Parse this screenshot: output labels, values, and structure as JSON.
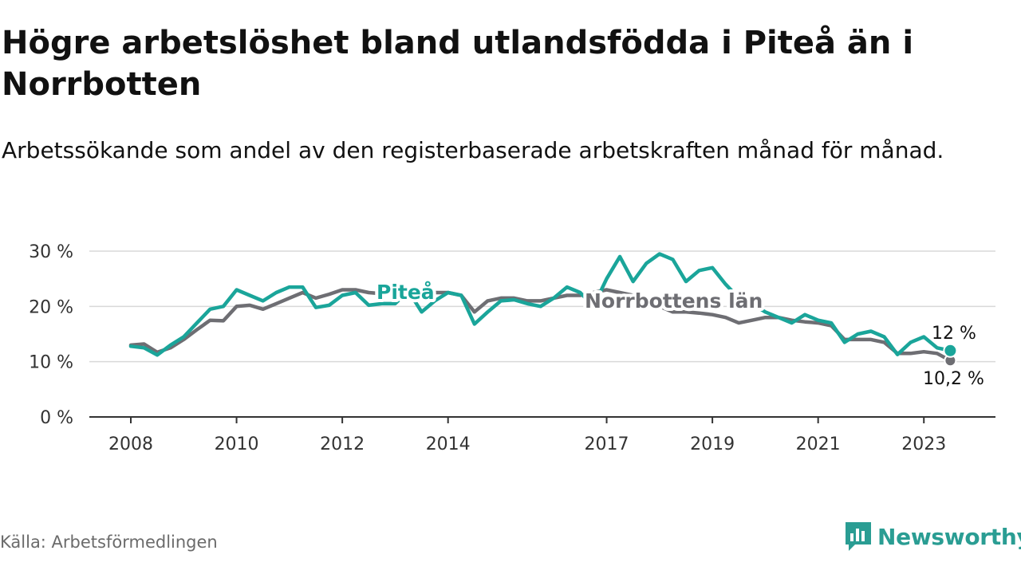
{
  "header": {
    "title": "Högre arbetslöshet bland utlandsfödda i Piteå än i Norrbotten",
    "subtitle": "Arbetssökande som andel av den registerbaserade arbetskraften månad för månad."
  },
  "footer": {
    "source": "Källa: Arbetsförmedlingen",
    "brand": "Newsworthy"
  },
  "colors": {
    "pitea": "#1aa59a",
    "norrbotten": "#6e6e73",
    "grid": "#d9d9d9",
    "axis": "#333333",
    "brand": "#2a9d93"
  },
  "chart_data": {
    "type": "line",
    "title": "Högre arbetslöshet bland utlandsfödda i Piteå än i Norrbotten",
    "subtitle": "Arbetssökande som andel av den registerbaserade arbetskraften månad för månad.",
    "xlabel": "",
    "ylabel": "",
    "xlim": [
      2008,
      2023.6
    ],
    "ylim": [
      0,
      30
    ],
    "grid": true,
    "y_ticks": [
      0,
      10,
      20,
      30
    ],
    "y_tick_labels": [
      "0 %",
      "10 %",
      "20 %",
      "30 %"
    ],
    "x_ticks": [
      2008,
      2010,
      2012,
      2014,
      2017,
      2019,
      2021,
      2023
    ],
    "x_tick_labels": [
      "2008",
      "2010",
      "2012",
      "2014",
      "2017",
      "2019",
      "2021",
      "2023"
    ],
    "series": [
      {
        "name": "Norrbottens län",
        "label": "Norrbottens län",
        "end_label": "10,2 %",
        "points": [
          [
            2008,
            13
          ],
          [
            2008.25,
            13.2
          ],
          [
            2008.5,
            11.7
          ],
          [
            2008.75,
            12.5
          ],
          [
            2009,
            14
          ],
          [
            2009.25,
            15.8
          ],
          [
            2009.5,
            17.5
          ],
          [
            2009.75,
            17.4
          ],
          [
            2010,
            20
          ],
          [
            2010.25,
            20.2
          ],
          [
            2010.5,
            19.5
          ],
          [
            2010.75,
            20.5
          ],
          [
            2011,
            21.5
          ],
          [
            2011.25,
            22.5
          ],
          [
            2011.5,
            21.5
          ],
          [
            2011.75,
            22.2
          ],
          [
            2012,
            23
          ],
          [
            2012.25,
            23
          ],
          [
            2012.5,
            22.5
          ],
          [
            2012.75,
            22.3
          ],
          [
            2013,
            22.5
          ],
          [
            2013.25,
            22.5
          ],
          [
            2013.5,
            22.2
          ],
          [
            2013.75,
            22.5
          ],
          [
            2014,
            22.5
          ],
          [
            2014.25,
            22
          ],
          [
            2014.5,
            19
          ],
          [
            2014.75,
            21
          ],
          [
            2015,
            21.5
          ],
          [
            2015.25,
            21.5
          ],
          [
            2015.5,
            21
          ],
          [
            2015.75,
            21
          ],
          [
            2016,
            21.5
          ],
          [
            2016.25,
            22
          ],
          [
            2016.5,
            22
          ],
          [
            2016.75,
            22.5
          ],
          [
            2017,
            23
          ],
          [
            2017.25,
            22.5
          ],
          [
            2017.5,
            22
          ],
          [
            2017.75,
            21
          ],
          [
            2018,
            20
          ],
          [
            2018.25,
            19
          ],
          [
            2018.5,
            19
          ],
          [
            2018.75,
            18.8
          ],
          [
            2019,
            18.5
          ],
          [
            2019.25,
            18
          ],
          [
            2019.5,
            17
          ],
          [
            2019.75,
            17.5
          ],
          [
            2020,
            18
          ],
          [
            2020.25,
            18
          ],
          [
            2020.5,
            17.5
          ],
          [
            2020.75,
            17.2
          ],
          [
            2021,
            17
          ],
          [
            2021.25,
            16.5
          ],
          [
            2021.5,
            14
          ],
          [
            2021.75,
            14
          ],
          [
            2022,
            14
          ],
          [
            2022.25,
            13.5
          ],
          [
            2022.5,
            11.5
          ],
          [
            2022.75,
            11.5
          ],
          [
            2023,
            11.8
          ],
          [
            2023.25,
            11.5
          ],
          [
            2023.5,
            10.2
          ]
        ]
      },
      {
        "name": "Piteå",
        "label": "Piteå",
        "end_label": "12 %",
        "points": [
          [
            2008,
            12.8
          ],
          [
            2008.25,
            12.5
          ],
          [
            2008.5,
            11.2
          ],
          [
            2008.75,
            13
          ],
          [
            2009,
            14.5
          ],
          [
            2009.25,
            17
          ],
          [
            2009.5,
            19.5
          ],
          [
            2009.75,
            20
          ],
          [
            2010,
            23
          ],
          [
            2010.25,
            22
          ],
          [
            2010.5,
            21
          ],
          [
            2010.75,
            22.5
          ],
          [
            2011,
            23.5
          ],
          [
            2011.25,
            23.5
          ],
          [
            2011.5,
            19.8
          ],
          [
            2011.75,
            20.2
          ],
          [
            2012,
            22
          ],
          [
            2012.25,
            22.5
          ],
          [
            2012.5,
            20.2
          ],
          [
            2012.75,
            20.5
          ],
          [
            2013,
            20.5
          ],
          [
            2013.25,
            22.8
          ],
          [
            2013.5,
            19
          ],
          [
            2013.75,
            21
          ],
          [
            2014,
            22.5
          ],
          [
            2014.25,
            22
          ],
          [
            2014.5,
            16.8
          ],
          [
            2014.75,
            19
          ],
          [
            2015,
            21
          ],
          [
            2015.25,
            21.2
          ],
          [
            2015.5,
            20.5
          ],
          [
            2015.75,
            20
          ],
          [
            2016,
            21.5
          ],
          [
            2016.25,
            23.5
          ],
          [
            2016.5,
            22.5
          ],
          [
            2016.75,
            20
          ],
          [
            2017,
            25
          ],
          [
            2017.25,
            29
          ],
          [
            2017.5,
            24.5
          ],
          [
            2017.75,
            27.8
          ],
          [
            2018,
            29.5
          ],
          [
            2018.25,
            28.5
          ],
          [
            2018.5,
            24.5
          ],
          [
            2018.75,
            26.5
          ],
          [
            2019,
            27
          ],
          [
            2019.25,
            24
          ],
          [
            2019.5,
            21.5
          ],
          [
            2019.75,
            20.5
          ],
          [
            2020,
            19
          ],
          [
            2020.25,
            18
          ],
          [
            2020.5,
            17
          ],
          [
            2020.75,
            18.5
          ],
          [
            2021,
            17.5
          ],
          [
            2021.25,
            17
          ],
          [
            2021.5,
            13.5
          ],
          [
            2021.75,
            15
          ],
          [
            2022,
            15.5
          ],
          [
            2022.25,
            14.5
          ],
          [
            2022.5,
            11.3
          ],
          [
            2022.75,
            13.5
          ],
          [
            2023,
            14.5
          ],
          [
            2023.25,
            12.5
          ],
          [
            2023.5,
            12
          ]
        ]
      }
    ]
  }
}
